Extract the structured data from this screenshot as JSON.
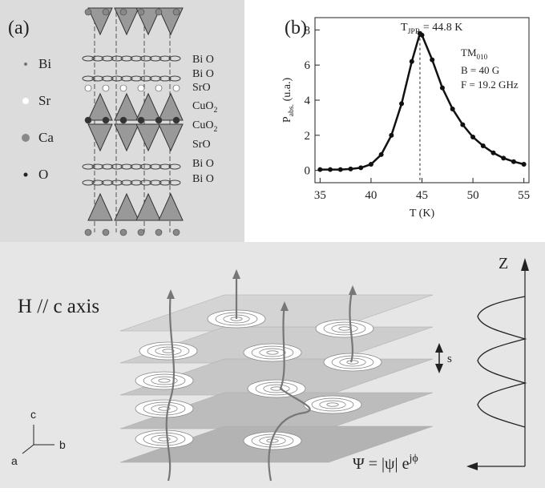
{
  "panel_a": {
    "label": "(a)",
    "legend": [
      "Bi",
      "Sr",
      "Ca",
      "O"
    ],
    "layers": [
      [
        "Bi O"
      ],
      [
        "Bi O"
      ],
      [
        "SrO"
      ],
      [
        "CuO",
        "2"
      ],
      [
        "CuO",
        "2"
      ],
      [
        "SrO"
      ],
      [
        "Bi O"
      ],
      [
        "Bi O"
      ]
    ]
  },
  "chart_data": {
    "type": "line",
    "label": "(b)",
    "x_label": "T (K)",
    "y_label": [
      "P",
      "abs.",
      " (u.a.)"
    ],
    "annotations": {
      "peak": [
        "T",
        "JPR",
        " = 44.8 K"
      ],
      "mode": [
        "TM",
        "010"
      ],
      "field": "B = 40 G",
      "freq": "F = 19.2 GHz"
    },
    "x": [
      35,
      36,
      37,
      38,
      39,
      40,
      41,
      42,
      43,
      44,
      44.8,
      45,
      46,
      47,
      48,
      49,
      50,
      51,
      52,
      53,
      54,
      55
    ],
    "series": [
      {
        "color": "#111111",
        "values": [
          0.05,
          0.05,
          0.05,
          0.08,
          0.15,
          0.35,
          0.9,
          2.0,
          3.8,
          6.2,
          7.8,
          7.7,
          6.3,
          4.7,
          3.5,
          2.6,
          1.9,
          1.4,
          1.0,
          0.7,
          0.5,
          0.35
        ]
      }
    ],
    "xlim": [
      34.5,
      55.5
    ],
    "ylim": [
      -0.7,
      8.7
    ],
    "xticks": [
      35,
      40,
      45,
      50,
      55
    ],
    "yticks": [
      0,
      2,
      4,
      6,
      8
    ]
  },
  "panel_c": {
    "field_label": "H // c axis",
    "z_label": "Z",
    "spacing_label": "s",
    "axes": [
      "c",
      "b",
      "a"
    ],
    "order_parameter": [
      "Ψ = |ψ| e",
      "jϕ"
    ]
  }
}
